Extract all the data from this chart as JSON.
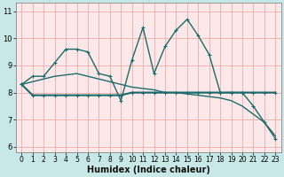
{
  "title": "",
  "xlabel": "Humidex (Indice chaleur)",
  "ylabel": "",
  "bg_color": "#c8e8e8",
  "plot_bg_color": "#fce8e8",
  "line_color": "#1a6b6b",
  "grid_color": "#e8a0a0",
  "spine_color": "#888888",
  "xlim": [
    -0.5,
    23.5
  ],
  "ylim": [
    5.8,
    11.3
  ],
  "yticks": [
    6,
    7,
    8,
    9,
    10,
    11
  ],
  "xticks": [
    0,
    1,
    2,
    3,
    4,
    5,
    6,
    7,
    8,
    9,
    10,
    11,
    12,
    13,
    14,
    15,
    16,
    17,
    18,
    19,
    20,
    21,
    22,
    23
  ],
  "line1_x": [
    0,
    1,
    2,
    3,
    4,
    5,
    6,
    7,
    8,
    9,
    10,
    11,
    12,
    13,
    14,
    15,
    16,
    17,
    18,
    19,
    20,
    21,
    22,
    23
  ],
  "line1_y": [
    8.3,
    8.6,
    8.6,
    9.1,
    9.6,
    9.6,
    9.5,
    8.7,
    8.6,
    7.7,
    9.2,
    10.4,
    8.7,
    9.7,
    10.3,
    10.7,
    10.1,
    9.4,
    8.0,
    8.0,
    8.0,
    7.5,
    6.9,
    6.3
  ],
  "line2_x": [
    0,
    1,
    2,
    3,
    4,
    5,
    6,
    7,
    8,
    9,
    10,
    11,
    12,
    13,
    14,
    15,
    16,
    17,
    18,
    19,
    20,
    21,
    22,
    23
  ],
  "line2_y": [
    8.3,
    7.9,
    7.9,
    7.9,
    7.9,
    7.9,
    7.9,
    7.9,
    7.9,
    7.9,
    8.0,
    8.0,
    8.0,
    8.0,
    8.0,
    8.0,
    8.0,
    8.0,
    8.0,
    8.0,
    8.0,
    8.0,
    8.0,
    8.0
  ],
  "line3_x": [
    0,
    1,
    2,
    3,
    4,
    5,
    6,
    7,
    8,
    9,
    10,
    11,
    12,
    13,
    14,
    15,
    16,
    17,
    18,
    19,
    20,
    21,
    22,
    23
  ],
  "line3_y": [
    8.3,
    8.4,
    8.5,
    8.6,
    8.65,
    8.7,
    8.6,
    8.5,
    8.4,
    8.3,
    8.2,
    8.15,
    8.1,
    8.0,
    8.0,
    7.95,
    7.9,
    7.85,
    7.8,
    7.7,
    7.5,
    7.2,
    6.9,
    6.4
  ],
  "xlabel_fontsize": 7,
  "tick_fontsize": 5.5
}
